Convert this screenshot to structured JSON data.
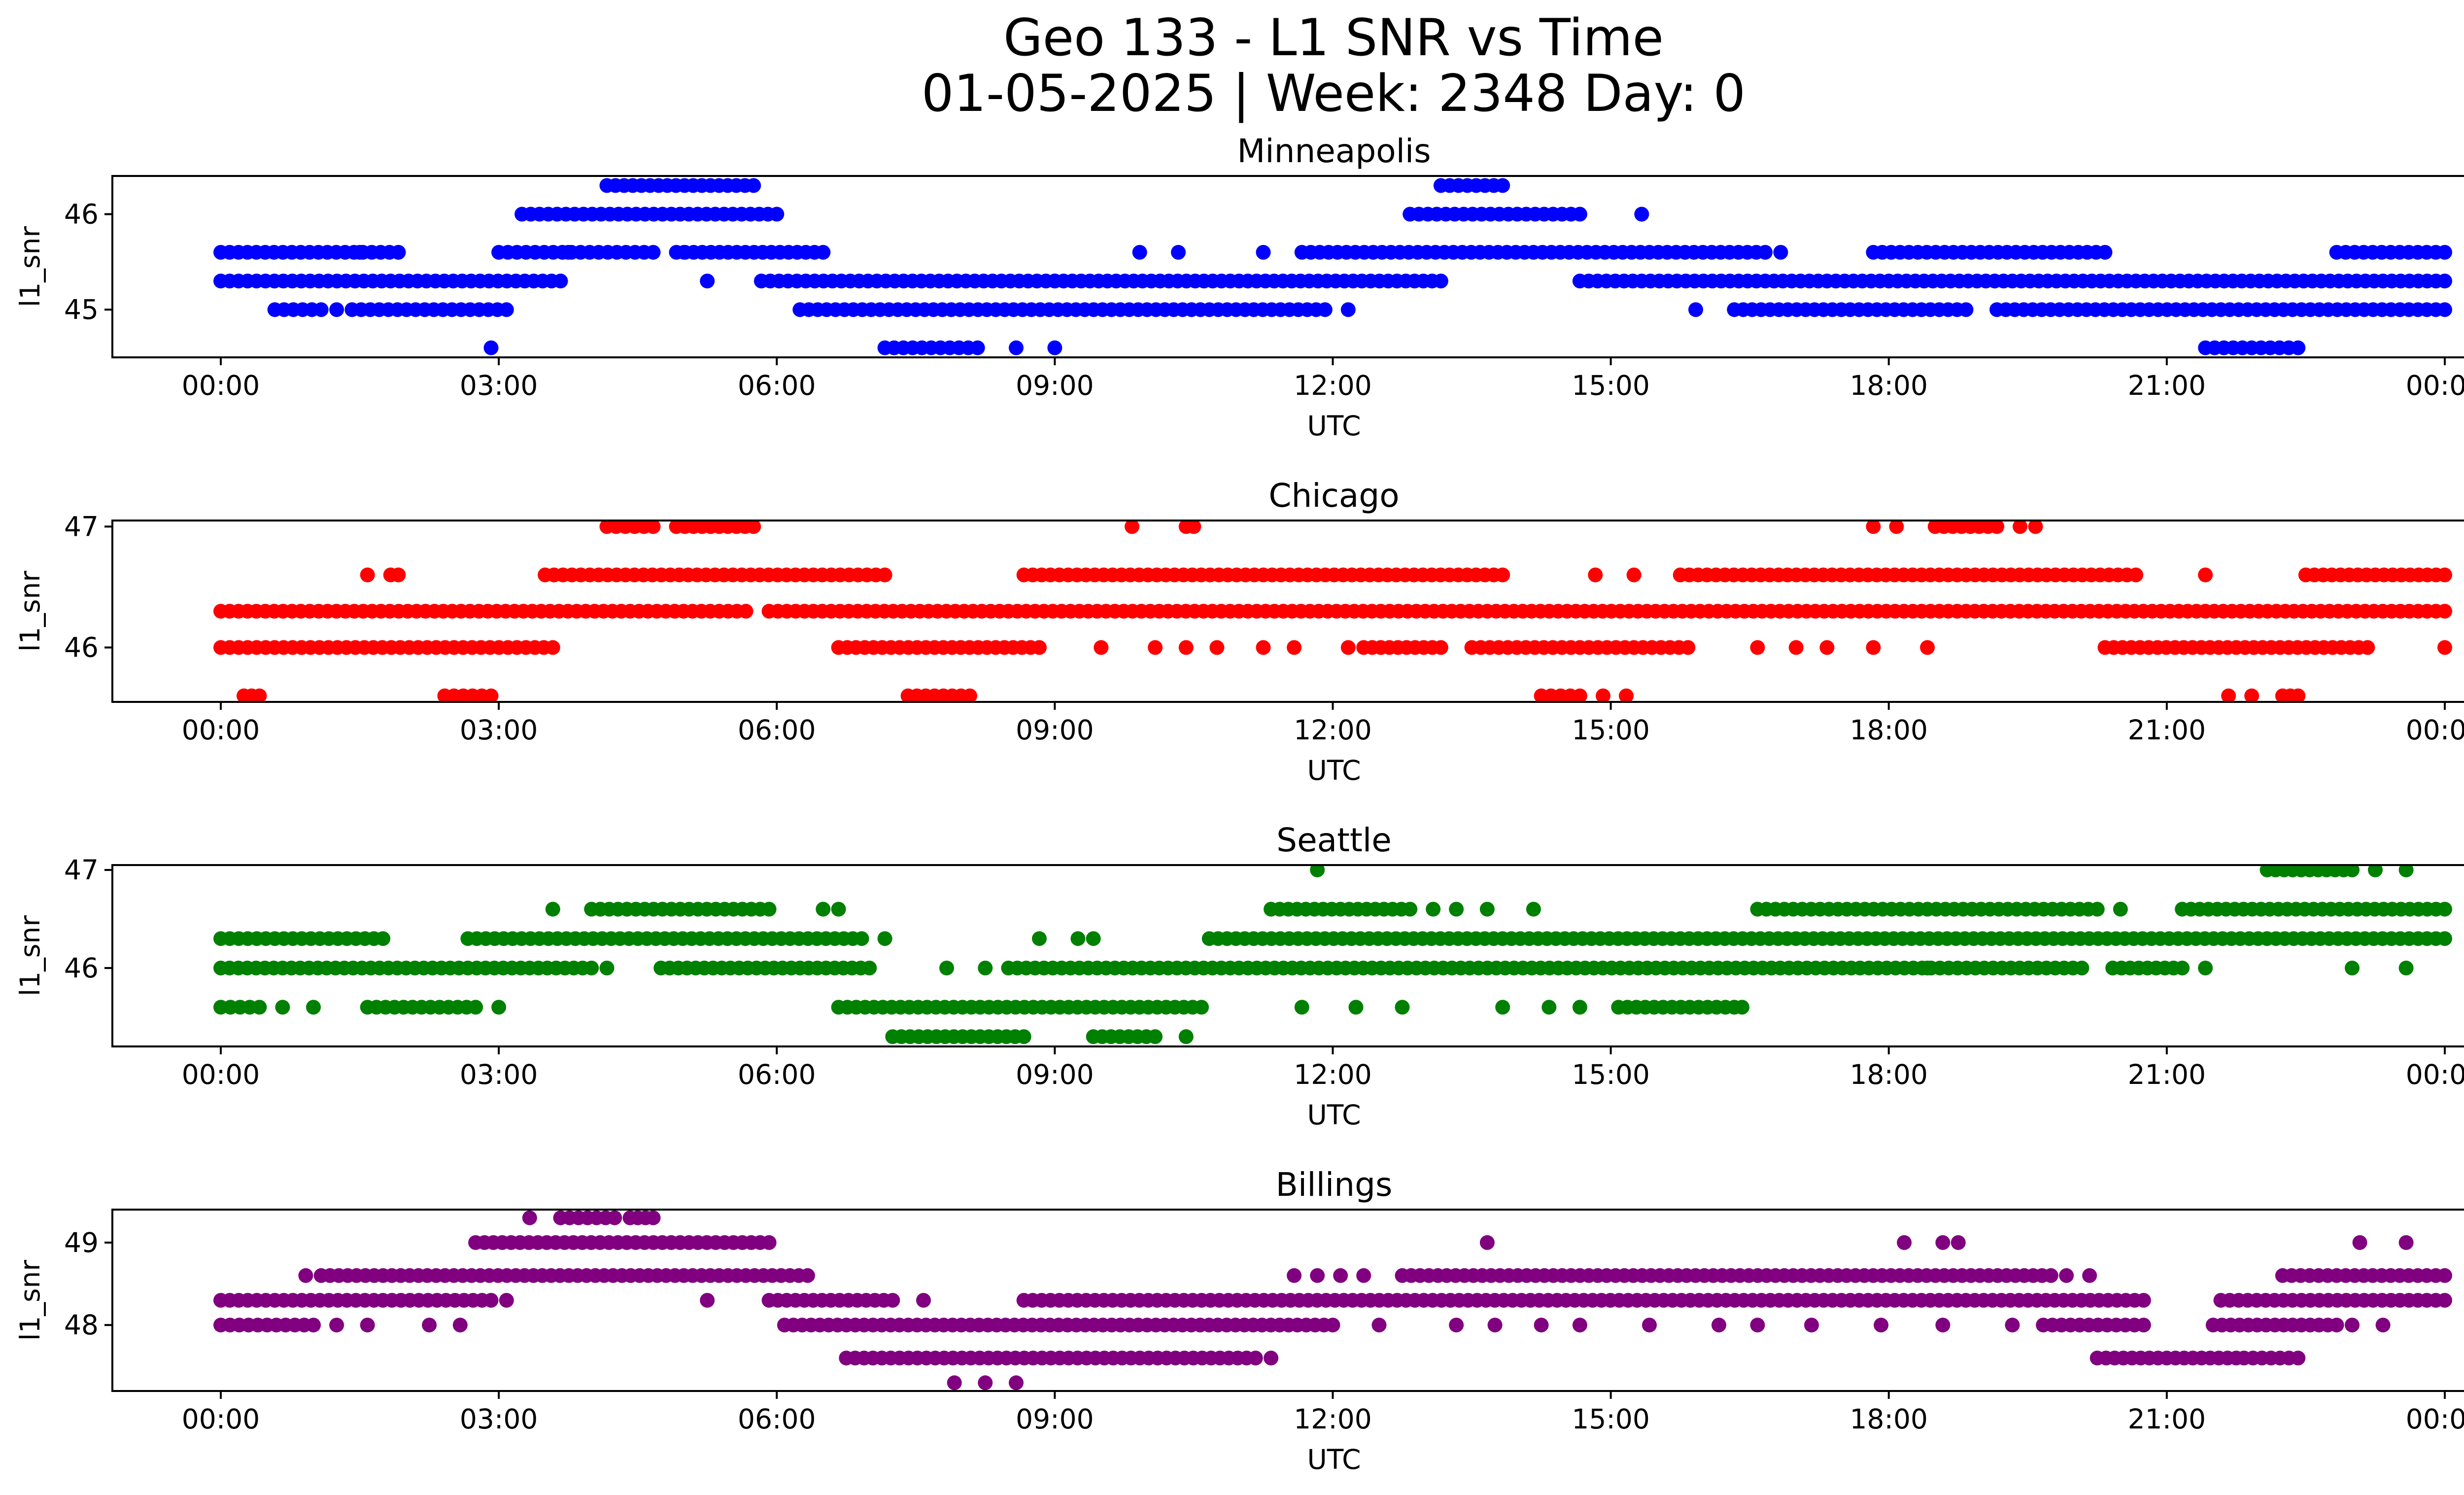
{
  "figure": {
    "title_line1": "Geo 133 - L1 SNR vs Time",
    "title_line2": "01-05-2025 | Week: 2348 Day: 0"
  },
  "chart_data": [
    {
      "type": "scatter",
      "title": "Minneapolis",
      "xlabel": "UTC",
      "ylabel": "l1_snr",
      "color": "#0000ff",
      "xlim": [
        "00:00",
        "24:00"
      ],
      "ylim": [
        44.5,
        46.4
      ],
      "xticks": [
        "00:00",
        "03:00",
        "06:00",
        "09:00",
        "12:00",
        "15:00",
        "18:00",
        "21:00",
        "00:00"
      ],
      "yticks": [
        {
          "v": 45,
          "label": "45"
        },
        {
          "v": 46,
          "label": "46"
        }
      ],
      "segments": [
        {
          "y": 46.3,
          "from": "04:10",
          "to": "05:45"
        },
        {
          "y": 46.3,
          "from": "13:10",
          "to": "13:50"
        },
        {
          "y": 46.0,
          "from": "03:15",
          "to": "06:00"
        },
        {
          "y": 46.0,
          "from": "12:50",
          "to": "14:40"
        },
        {
          "y": 45.6,
          "from": "00:00",
          "to": "01:55"
        },
        {
          "y": 45.6,
          "from": "03:00",
          "to": "04:40"
        },
        {
          "y": 45.6,
          "from": "04:55",
          "to": "06:30"
        },
        {
          "y": 45.6,
          "from": "11:40",
          "to": "16:40"
        },
        {
          "y": 45.6,
          "from": "17:50",
          "to": "20:20"
        },
        {
          "y": 45.6,
          "from": "22:50",
          "to": "24:00"
        },
        {
          "y": 45.3,
          "from": "00:00",
          "to": "03:40"
        },
        {
          "y": 45.3,
          "from": "05:50",
          "to": "09:00"
        },
        {
          "y": 45.3,
          "from": "09:00",
          "to": "13:10"
        },
        {
          "y": 45.3,
          "from": "14:40",
          "to": "24:00"
        },
        {
          "y": 45.0,
          "from": "00:35",
          "to": "01:05"
        },
        {
          "y": 45.0,
          "from": "01:25",
          "to": "03:05"
        },
        {
          "y": 45.0,
          "from": "06:15",
          "to": "11:55"
        },
        {
          "y": 45.0,
          "from": "16:20",
          "to": "18:50"
        },
        {
          "y": 45.0,
          "from": "19:10",
          "to": "24:00"
        },
        {
          "y": 44.6,
          "from": "07:10",
          "to": "08:10"
        },
        {
          "y": 44.6,
          "from": "21:25",
          "to": "22:25"
        }
      ],
      "points": [
        {
          "x": "02:55",
          "y": 44.6
        },
        {
          "x": "08:35",
          "y": 44.6
        },
        {
          "x": "09:00",
          "y": 44.6
        },
        {
          "x": "01:30",
          "y": 45.6
        },
        {
          "x": "01:55",
          "y": 45.6
        },
        {
          "x": "03:45",
          "y": 45.6
        },
        {
          "x": "05:00",
          "y": 45.6
        },
        {
          "x": "09:55",
          "y": 45.6
        },
        {
          "x": "10:20",
          "y": 45.6
        },
        {
          "x": "11:15",
          "y": 45.6
        },
        {
          "x": "16:50",
          "y": 45.6
        },
        {
          "x": "15:20",
          "y": 46.0
        },
        {
          "x": "05:15",
          "y": 45.3
        },
        {
          "x": "12:10",
          "y": 45.0
        },
        {
          "x": "15:55",
          "y": 45.0
        },
        {
          "x": "01:15",
          "y": 45.0
        }
      ]
    },
    {
      "type": "scatter",
      "title": "Chicago",
      "xlabel": "UTC",
      "ylabel": "l1_snr",
      "color": "#ff0000",
      "xlim": [
        "00:00",
        "24:00"
      ],
      "ylim": [
        45.55,
        47.05
      ],
      "xticks": [
        "00:00",
        "03:00",
        "06:00",
        "09:00",
        "12:00",
        "15:00",
        "18:00",
        "21:00",
        "00:00"
      ],
      "yticks": [
        {
          "v": 46,
          "label": "46"
        },
        {
          "v": 47,
          "label": "47"
        }
      ],
      "segments": [
        {
          "y": 47.0,
          "from": "04:10",
          "to": "04:40"
        },
        {
          "y": 47.0,
          "from": "04:55",
          "to": "05:45"
        },
        {
          "y": 47.0,
          "from": "18:30",
          "to": "19:10"
        },
        {
          "y": 46.6,
          "from": "03:30",
          "to": "07:10"
        },
        {
          "y": 46.6,
          "from": "08:40",
          "to": "13:50"
        },
        {
          "y": 46.6,
          "from": "15:45",
          "to": "20:40"
        },
        {
          "y": 46.6,
          "from": "22:30",
          "to": "24:00"
        },
        {
          "y": 46.3,
          "from": "00:00",
          "to": "05:40"
        },
        {
          "y": 46.3,
          "from": "05:55",
          "to": "24:00"
        },
        {
          "y": 46.0,
          "from": "00:00",
          "to": "03:35"
        },
        {
          "y": 46.0,
          "from": "06:40",
          "to": "08:50"
        },
        {
          "y": 46.0,
          "from": "12:20",
          "to": "13:10"
        },
        {
          "y": 46.0,
          "from": "13:30",
          "to": "15:50"
        },
        {
          "y": 46.0,
          "from": "20:20",
          "to": "23:10"
        },
        {
          "y": 45.6,
          "from": "00:15",
          "to": "00:25"
        },
        {
          "y": 45.6,
          "from": "02:25",
          "to": "02:55"
        },
        {
          "y": 45.6,
          "from": "07:25",
          "to": "08:05"
        },
        {
          "y": 45.6,
          "from": "14:15",
          "to": "14:40"
        },
        {
          "y": 45.6,
          "from": "22:15",
          "to": "22:25"
        }
      ],
      "points": [
        {
          "x": "09:50",
          "y": 47.0
        },
        {
          "x": "10:25",
          "y": 47.0
        },
        {
          "x": "10:30",
          "y": 47.0
        },
        {
          "x": "17:50",
          "y": 47.0
        },
        {
          "x": "18:05",
          "y": 47.0
        },
        {
          "x": "19:25",
          "y": 47.0
        },
        {
          "x": "19:35",
          "y": 47.0
        },
        {
          "x": "01:35",
          "y": 46.6
        },
        {
          "x": "01:50",
          "y": 46.6
        },
        {
          "x": "01:55",
          "y": 46.6
        },
        {
          "x": "14:50",
          "y": 46.6
        },
        {
          "x": "15:15",
          "y": 46.6
        },
        {
          "x": "21:25",
          "y": 46.6
        },
        {
          "x": "09:30",
          "y": 46.0
        },
        {
          "x": "10:05",
          "y": 46.0
        },
        {
          "x": "10:25",
          "y": 46.0
        },
        {
          "x": "10:45",
          "y": 46.0
        },
        {
          "x": "11:15",
          "y": 46.0
        },
        {
          "x": "11:35",
          "y": 46.0
        },
        {
          "x": "12:10",
          "y": 46.0
        },
        {
          "x": "16:35",
          "y": 46.0
        },
        {
          "x": "17:00",
          "y": 46.0
        },
        {
          "x": "17:20",
          "y": 46.0
        },
        {
          "x": "17:50",
          "y": 46.0
        },
        {
          "x": "18:25",
          "y": 46.0
        },
        {
          "x": "24:00",
          "y": 46.0
        },
        {
          "x": "14:55",
          "y": 45.6
        },
        {
          "x": "15:10",
          "y": 45.6
        },
        {
          "x": "21:40",
          "y": 45.6
        },
        {
          "x": "21:55",
          "y": 45.6
        }
      ]
    },
    {
      "type": "scatter",
      "title": "Seattle",
      "xlabel": "UTC",
      "ylabel": "l1_snr",
      "color": "#008000",
      "xlim": [
        "00:00",
        "24:00"
      ],
      "ylim": [
        45.2,
        47.05
      ],
      "xticks": [
        "00:00",
        "03:00",
        "06:00",
        "09:00",
        "12:00",
        "15:00",
        "18:00",
        "21:00",
        "00:00"
      ],
      "yticks": [
        {
          "v": 46,
          "label": "46"
        },
        {
          "v": 47,
          "label": "47"
        }
      ],
      "segments": [
        {
          "y": 47.0,
          "from": "22:05",
          "to": "23:00"
        },
        {
          "y": 46.6,
          "from": "04:00",
          "to": "05:55"
        },
        {
          "y": 46.6,
          "from": "11:20",
          "to": "12:50"
        },
        {
          "y": 46.6,
          "from": "16:35",
          "to": "20:15"
        },
        {
          "y": 46.6,
          "from": "21:10",
          "to": "24:00"
        },
        {
          "y": 46.3,
          "from": "00:00",
          "to": "01:45"
        },
        {
          "y": 46.3,
          "from": "02:40",
          "to": "06:55"
        },
        {
          "y": 46.3,
          "from": "10:40",
          "to": "24:00"
        },
        {
          "y": 46.0,
          "from": "00:00",
          "to": "04:00"
        },
        {
          "y": 46.0,
          "from": "04:45",
          "to": "07:00"
        },
        {
          "y": 46.0,
          "from": "08:30",
          "to": "20:05"
        },
        {
          "y": 46.0,
          "from": "20:25",
          "to": "21:10"
        },
        {
          "y": 45.6,
          "from": "00:00",
          "to": "00:25"
        },
        {
          "y": 45.6,
          "from": "01:35",
          "to": "02:45"
        },
        {
          "y": 45.6,
          "from": "06:40",
          "to": "10:35"
        },
        {
          "y": 45.6,
          "from": "15:05",
          "to": "16:20"
        },
        {
          "y": 45.3,
          "from": "07:15",
          "to": "08:40"
        },
        {
          "y": 45.3,
          "from": "09:25",
          "to": "10:05"
        }
      ],
      "points": [
        {
          "x": "11:50",
          "y": 47.0
        },
        {
          "x": "23:15",
          "y": 47.0
        },
        {
          "x": "23:35",
          "y": 47.0
        },
        {
          "x": "03:35",
          "y": 46.6
        },
        {
          "x": "06:30",
          "y": 46.6
        },
        {
          "x": "06:40",
          "y": 46.6
        },
        {
          "x": "13:05",
          "y": 46.6
        },
        {
          "x": "13:20",
          "y": 46.6
        },
        {
          "x": "13:40",
          "y": 46.6
        },
        {
          "x": "14:10",
          "y": 46.6
        },
        {
          "x": "20:30",
          "y": 46.6
        },
        {
          "x": "07:10",
          "y": 46.3
        },
        {
          "x": "08:50",
          "y": 46.3
        },
        {
          "x": "09:15",
          "y": 46.3
        },
        {
          "x": "09:25",
          "y": 46.3
        },
        {
          "x": "04:10",
          "y": 46.0
        },
        {
          "x": "07:50",
          "y": 46.0
        },
        {
          "x": "08:15",
          "y": 46.0
        },
        {
          "x": "18:25",
          "y": 46.0
        },
        {
          "x": "21:25",
          "y": 46.0
        },
        {
          "x": "23:00",
          "y": 46.0
        },
        {
          "x": "23:35",
          "y": 46.0
        },
        {
          "x": "00:40",
          "y": 45.6
        },
        {
          "x": "01:00",
          "y": 45.6
        },
        {
          "x": "03:00",
          "y": 45.6
        },
        {
          "x": "11:40",
          "y": 45.6
        },
        {
          "x": "12:15",
          "y": 45.6
        },
        {
          "x": "12:45",
          "y": 45.6
        },
        {
          "x": "13:50",
          "y": 45.6
        },
        {
          "x": "14:20",
          "y": 45.6
        },
        {
          "x": "14:40",
          "y": 45.6
        },
        {
          "x": "16:25",
          "y": 45.6
        },
        {
          "x": "10:25",
          "y": 45.3
        }
      ]
    },
    {
      "type": "scatter",
      "title": "Billings",
      "xlabel": "UTC",
      "ylabel": "l1_snr",
      "color": "#800080",
      "xlim": [
        "00:00",
        "24:00"
      ],
      "ylim": [
        47.2,
        49.4
      ],
      "xticks": [
        "00:00",
        "03:00",
        "06:00",
        "09:00",
        "12:00",
        "15:00",
        "18:00",
        "21:00",
        "00:00"
      ],
      "yticks": [
        {
          "v": 48,
          "label": "48"
        },
        {
          "v": 49,
          "label": "49"
        }
      ],
      "segments": [
        {
          "y": 49.3,
          "from": "03:40",
          "to": "04:15"
        },
        {
          "y": 49.3,
          "from": "04:25",
          "to": "04:40"
        },
        {
          "y": 49.0,
          "from": "02:45",
          "to": "05:55"
        },
        {
          "y": 48.6,
          "from": "01:05",
          "to": "06:20"
        },
        {
          "y": 48.6,
          "from": "12:45",
          "to": "19:45"
        },
        {
          "y": 48.6,
          "from": "22:15",
          "to": "24:00"
        },
        {
          "y": 48.3,
          "from": "00:00",
          "to": "02:55"
        },
        {
          "y": 48.3,
          "from": "05:55",
          "to": "07:15"
        },
        {
          "y": 48.3,
          "from": "08:40",
          "to": "20:45"
        },
        {
          "y": 48.3,
          "from": "21:35",
          "to": "24:00"
        },
        {
          "y": 48.0,
          "from": "00:00",
          "to": "01:00"
        },
        {
          "y": 48.0,
          "from": "06:05",
          "to": "12:00"
        },
        {
          "y": 48.0,
          "from": "19:40",
          "to": "20:45"
        },
        {
          "y": 48.0,
          "from": "21:30",
          "to": "22:50"
        },
        {
          "y": 47.6,
          "from": "06:45",
          "to": "11:10"
        },
        {
          "y": 47.6,
          "from": "20:15",
          "to": "21:45"
        },
        {
          "y": 47.6,
          "from": "21:50",
          "to": "22:25"
        }
      ],
      "points": [
        {
          "x": "03:20",
          "y": 49.3
        },
        {
          "x": "13:40",
          "y": 49.0
        },
        {
          "x": "18:10",
          "y": 49.0
        },
        {
          "x": "18:35",
          "y": 49.0
        },
        {
          "x": "18:45",
          "y": 49.0
        },
        {
          "x": "23:05",
          "y": 49.0
        },
        {
          "x": "23:35",
          "y": 49.0
        },
        {
          "x": "00:55",
          "y": 48.6
        },
        {
          "x": "11:35",
          "y": 48.6
        },
        {
          "x": "11:50",
          "y": 48.6
        },
        {
          "x": "12:05",
          "y": 48.6
        },
        {
          "x": "12:20",
          "y": 48.6
        },
        {
          "x": "19:55",
          "y": 48.6
        },
        {
          "x": "20:10",
          "y": 48.6
        },
        {
          "x": "03:05",
          "y": 48.3
        },
        {
          "x": "05:15",
          "y": 48.3
        },
        {
          "x": "07:35",
          "y": 48.3
        },
        {
          "x": "01:15",
          "y": 48.0
        },
        {
          "x": "01:35",
          "y": 48.0
        },
        {
          "x": "02:15",
          "y": 48.0
        },
        {
          "x": "02:35",
          "y": 48.0
        },
        {
          "x": "12:30",
          "y": 48.0
        },
        {
          "x": "13:20",
          "y": 48.0
        },
        {
          "x": "13:45",
          "y": 48.0
        },
        {
          "x": "14:15",
          "y": 48.0
        },
        {
          "x": "14:40",
          "y": 48.0
        },
        {
          "x": "15:25",
          "y": 48.0
        },
        {
          "x": "16:10",
          "y": 48.0
        },
        {
          "x": "16:35",
          "y": 48.0
        },
        {
          "x": "17:10",
          "y": 48.0
        },
        {
          "x": "17:55",
          "y": 48.0
        },
        {
          "x": "18:35",
          "y": 48.0
        },
        {
          "x": "19:20",
          "y": 48.0
        },
        {
          "x": "23:00",
          "y": 48.0
        },
        {
          "x": "23:20",
          "y": 48.0
        },
        {
          "x": "11:20",
          "y": 47.6
        },
        {
          "x": "07:55",
          "y": 47.3
        },
        {
          "x": "08:15",
          "y": 47.3
        },
        {
          "x": "08:35",
          "y": 47.3
        }
      ]
    }
  ]
}
